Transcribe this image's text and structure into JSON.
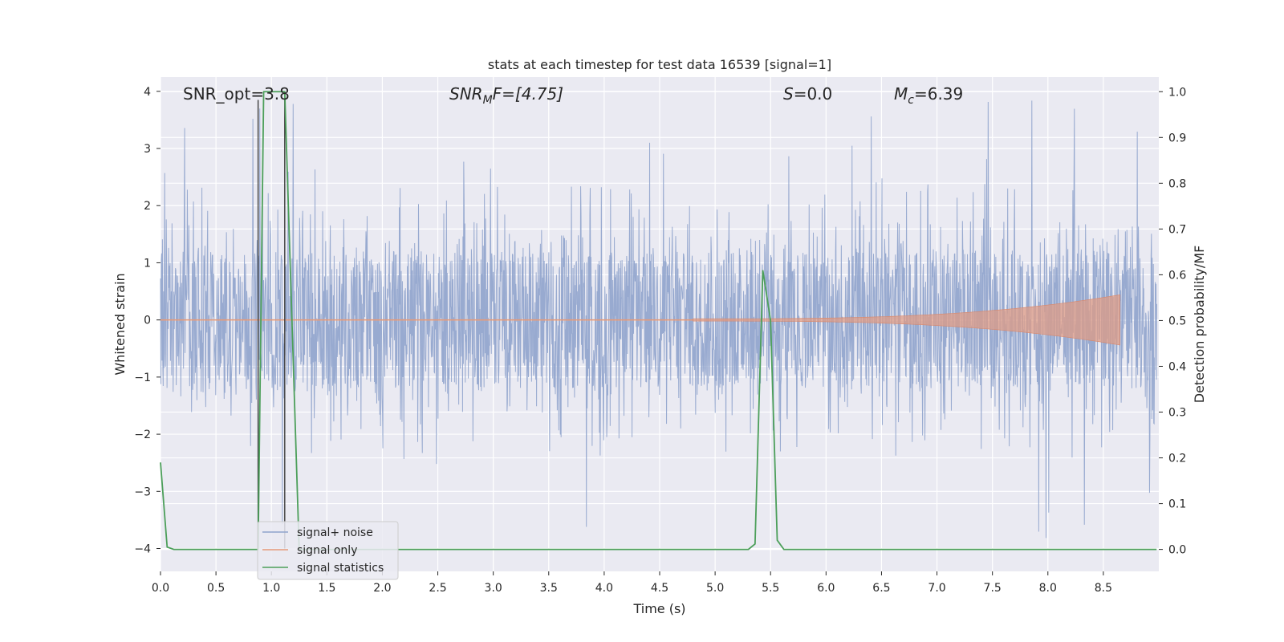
{
  "chart_data": {
    "type": "line",
    "title": "stats at each timestep for test data 16539 [signal=1]",
    "xlabel": "Time (s)",
    "ylabel_left": "Whitened strain",
    "ylabel_right": "Detection probability/MF",
    "xlim": [
      0.0,
      9.0
    ],
    "ylim_left": [
      -4.4,
      4.25
    ],
    "ylim_right": [
      -0.048,
      1.032
    ],
    "x_ticks": [
      "0.0",
      "0.5",
      "1.0",
      "1.5",
      "2.0",
      "2.5",
      "3.0",
      "3.5",
      "4.0",
      "4.5",
      "5.0",
      "5.5",
      "6.0",
      "6.5",
      "7.0",
      "7.5",
      "8.0",
      "8.5"
    ],
    "y_ticks_left": [
      "4",
      "3",
      "2",
      "1",
      "0",
      "−1",
      "−2",
      "−3",
      "−4"
    ],
    "y_ticks_right": [
      "1.0",
      "0.9",
      "0.8",
      "0.7",
      "0.6",
      "0.5",
      "0.4",
      "0.3",
      "0.2",
      "0.1",
      "0.0"
    ],
    "grid": true,
    "legend_position": "lower-left",
    "annotations": {
      "snr_opt": "SNR_opt=3.8",
      "snr_mf_main": "SNR",
      "snr_mf_sub": "M",
      "snr_mf_rest": "F=[4.75]",
      "s_label": "S",
      "s_value": "=0.0",
      "mc_main": "M",
      "mc_sub": "c",
      "mc_value": "=6.39"
    },
    "vertical_lines_x": [
      0.88,
      1.12
    ],
    "series": [
      {
        "name": "signal+ noise",
        "color": "#8fa3cc",
        "axis": "left",
        "noise_envelope": {
          "core": 1.2,
          "spikes": 2.2,
          "max_peak": 3.85
        }
      },
      {
        "name": "signal only",
        "color": "#e59a79",
        "axis": "left",
        "chirp_start": 4.8,
        "chirp_end": 8.65,
        "end_amplitude": 0.42
      },
      {
        "name": "signal statistics",
        "color": "#4c9f5a",
        "axis": "right",
        "x": [
          0.0,
          0.06,
          0.12,
          0.88,
          0.93,
          1.0,
          1.12,
          1.25,
          1.4,
          5.3,
          5.36,
          5.43,
          5.5,
          5.56,
          5.62,
          8.98
        ],
        "y": [
          0.19,
          0.005,
          0.0,
          0.0,
          1.0,
          1.0,
          1.0,
          0.0,
          0.0,
          0.0,
          0.012,
          0.61,
          0.5,
          0.02,
          0.0,
          0.0
        ]
      }
    ],
    "colors": {
      "plot_bg": "#eaeaf2",
      "grid": "#ffffff",
      "vline": "#3d3d3d"
    }
  }
}
